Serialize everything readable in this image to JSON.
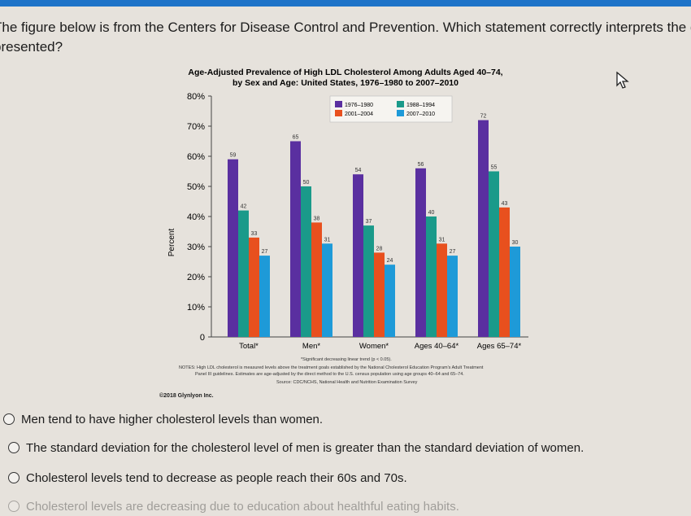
{
  "question": {
    "line1": "The figure below is from the Centers for Disease Control and Prevention. Which statement correctly interprets the data",
    "line2": "presented?"
  },
  "chart_data": {
    "type": "bar",
    "title": "Age-Adjusted Prevalence of High LDL Cholesterol Among Adults Aged 40–74,",
    "subtitle": "by Sex and Age: United States, 1976–1980 to 2007–2010",
    "ylabel": "Percent",
    "ylim": [
      0,
      80
    ],
    "y_ticks": [
      "0",
      "10%",
      "20%",
      "30%",
      "40%",
      "50%",
      "60%",
      "70%",
      "80%"
    ],
    "categories": [
      "Total*",
      "Men*",
      "Women*",
      "Ages 40–64*",
      "Ages 65–74*"
    ],
    "series": [
      {
        "name": "1976–1980",
        "color": "#5a2fa0",
        "values": [
          59,
          65,
          54,
          56,
          72
        ]
      },
      {
        "name": "1988–1994",
        "color": "#1a9a8a",
        "values": [
          42,
          50,
          37,
          40,
          55
        ]
      },
      {
        "name": "2001–2004",
        "color": "#e8501e",
        "values": [
          33,
          38,
          28,
          31,
          43
        ]
      },
      {
        "name": "2007–2010",
        "color": "#1e9ad8",
        "values": [
          27,
          31,
          24,
          27,
          30
        ]
      }
    ],
    "footnote": "*Significant decreasing linear trend (p < 0.05).",
    "notes_line1": "NOTES: High LDL cholesterol is measured levels above the treatment goals established by the National Cholesterol Education Program's Adult Treatment",
    "notes_line2": "Panel III guidelines. Estimates are age-adjusted by the direct method to the U.S. census population using age groups 40–64 and 65–74.",
    "source": "Source: CDC/NCHS, National Health and Nutrition Examination Survey"
  },
  "copyright": "©2018 Glynlyon Inc.",
  "choices": [
    "Men tend to have higher cholesterol levels than women.",
    "The standard deviation for the cholesterol level of men is greater than the standard deviation of women.",
    "Cholesterol levels tend to decrease as people reach their 60s and 70s.",
    "Cholesterol levels are decreasing due to education about healthful eating habits."
  ]
}
